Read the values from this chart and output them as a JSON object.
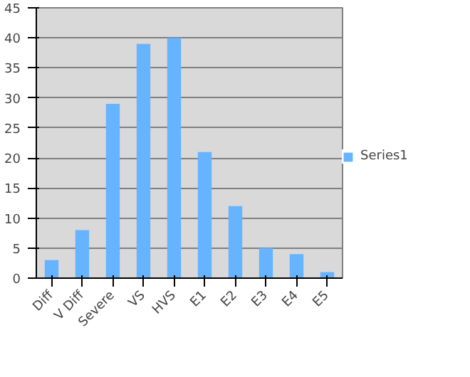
{
  "chart_data": {
    "type": "bar",
    "categories": [
      "Diff",
      "V Diff",
      "Severe",
      "VS",
      "HVS",
      "E1",
      "E2",
      "E3",
      "E4",
      "E5"
    ],
    "series": [
      {
        "name": "Series1",
        "color": "#66b3ff",
        "values": [
          3,
          8,
          29,
          39,
          40,
          21,
          12,
          5,
          4,
          1
        ]
      }
    ],
    "ylim": [
      0,
      45
    ],
    "yticks": [
      0,
      5,
      10,
      15,
      20,
      25,
      30,
      35,
      40,
      45
    ],
    "grid": "y",
    "legend": "right"
  }
}
